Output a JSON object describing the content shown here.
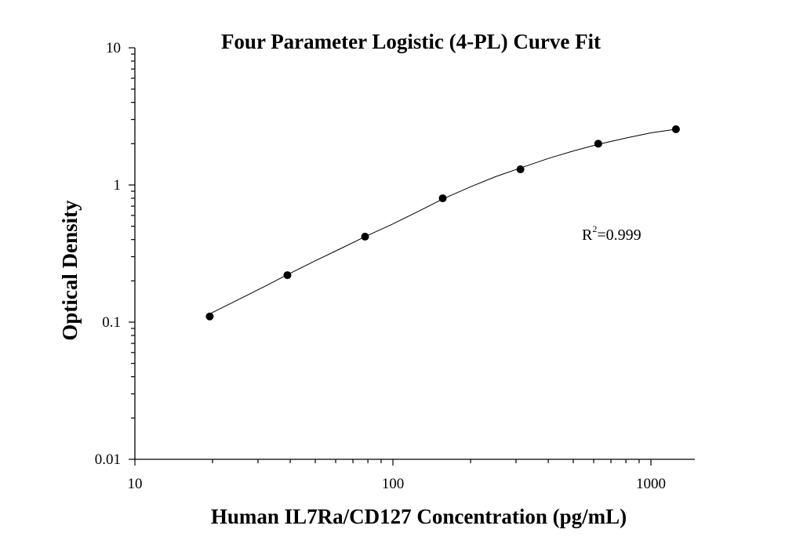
{
  "chart_data": {
    "type": "scatter",
    "title": "Four Parameter Logistic (4-PL) Curve Fit",
    "xlabel": "Human IL7Ra/CD127 Concentration (pg/mL)",
    "ylabel": "Optical Density",
    "x_scale": "log",
    "y_scale": "log",
    "xlim": [
      10,
      1500
    ],
    "ylim": [
      0.01,
      10
    ],
    "x_ticks": [
      "10",
      "100",
      "1000"
    ],
    "y_ticks": [
      "0.01",
      "0.1",
      "1",
      "10"
    ],
    "grid": false,
    "series": [
      {
        "x": [
          19.5,
          39,
          78,
          156,
          312,
          625,
          1250
        ],
        "y": [
          0.11,
          0.22,
          0.42,
          0.8,
          1.3,
          2.0,
          2.55
        ]
      }
    ],
    "fit_curve": {
      "model": "4-PL",
      "x": [
        19.5,
        25,
        32,
        39,
        50,
        62,
        78,
        100,
        125,
        156,
        200,
        250,
        312,
        400,
        500,
        625,
        800,
        1000,
        1250
      ],
      "y": [
        0.115,
        0.145,
        0.183,
        0.222,
        0.28,
        0.34,
        0.42,
        0.52,
        0.64,
        0.79,
        0.97,
        1.15,
        1.33,
        1.56,
        1.77,
        1.98,
        2.2,
        2.4,
        2.55
      ]
    },
    "annotation": {
      "prefix": "R",
      "superscript": "2",
      "suffix": "=0.999"
    }
  }
}
